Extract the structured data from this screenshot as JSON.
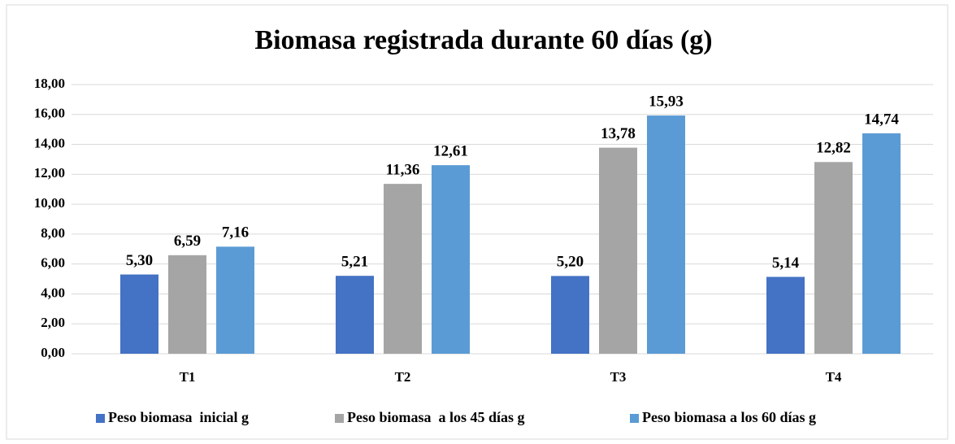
{
  "chart_data": {
    "type": "bar",
    "title": "Biomasa registrada durante 60 días (g)",
    "categories": [
      "T1",
      "T2",
      "T3",
      "T4"
    ],
    "series": [
      {
        "name": "Peso biomasa  inicial g",
        "color": "#4472c4",
        "values": [
          5.3,
          5.21,
          5.2,
          5.14
        ],
        "value_labels": [
          "5,30",
          "5,21",
          "5,20",
          "5,14"
        ]
      },
      {
        "name": "Peso biomasa  a los 45 días g",
        "color": "#a5a5a5",
        "values": [
          6.59,
          11.36,
          13.78,
          12.82
        ],
        "value_labels": [
          "6,59",
          "11,36",
          "13,78",
          "12,82"
        ]
      },
      {
        "name": "Peso biomasa a los 60 días g",
        "color": "#5b9bd5",
        "values": [
          7.16,
          12.61,
          15.93,
          14.74
        ],
        "value_labels": [
          "7,16",
          "12,61",
          "15,93",
          "14,74"
        ]
      }
    ],
    "ylim": [
      0,
      18
    ],
    "yticks": [
      {
        "value": 0,
        "label": "0,00"
      },
      {
        "value": 2,
        "label": "2,00"
      },
      {
        "value": 4,
        "label": "4,00"
      },
      {
        "value": 6,
        "label": "6,00"
      },
      {
        "value": 8,
        "label": "8,00"
      },
      {
        "value": 10,
        "label": "10,00"
      },
      {
        "value": 12,
        "label": "12,00"
      },
      {
        "value": 14,
        "label": "14,00"
      },
      {
        "value": 16,
        "label": "16,00"
      },
      {
        "value": 18,
        "label": "18,00"
      }
    ],
    "grid": true,
    "legend": "bottom"
  }
}
